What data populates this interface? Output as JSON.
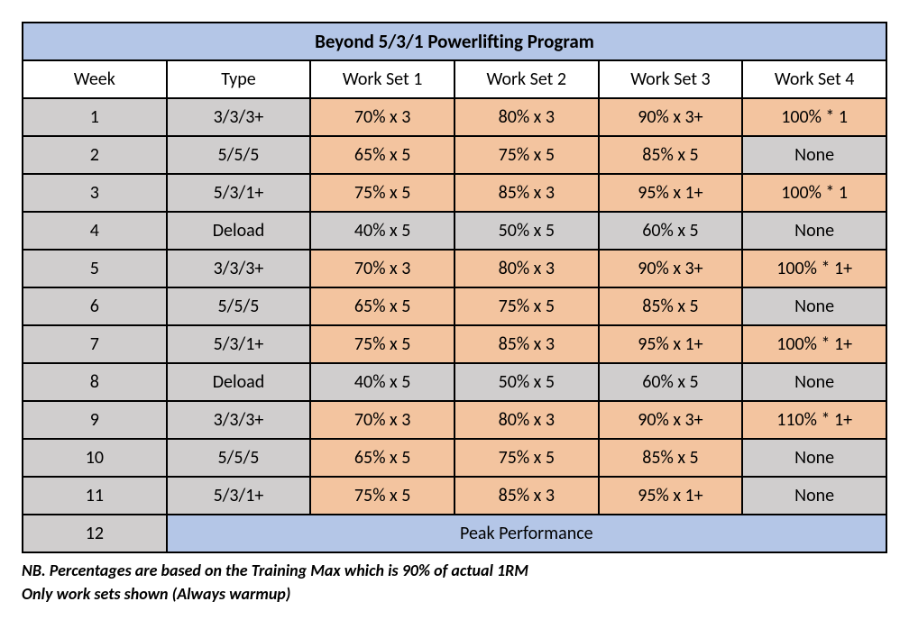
{
  "table": {
    "title": "Beyond 5/3/1 Powerlifting Program",
    "title_bg": "#b4c6e7",
    "columns": [
      "Week",
      "Type",
      "Work Set 1",
      "Work Set 2",
      "Work Set 3",
      "Work Set 4"
    ],
    "cell_colors": {
      "gray": "#d0cece",
      "orange": "#f3c49f",
      "blue": "#b4c6e7"
    },
    "rows": [
      {
        "week": "1",
        "type": "3/3/3+",
        "ws1": "70% x 3",
        "ws2": "80% x 3",
        "ws3": "90% x 3+",
        "ws4": "100% * 1",
        "ws_class": "orange"
      },
      {
        "week": "2",
        "type": "5/5/5",
        "ws1": "65% x 5",
        "ws2": "75% x 5",
        "ws3": "85% x 5",
        "ws4": "None",
        "ws_class": "gray",
        "override": {
          "ws1": "orange",
          "ws2": "orange",
          "ws3": "orange"
        }
      },
      {
        "week": "3",
        "type": "5/3/1+",
        "ws1": "75% x 5",
        "ws2": "85% x 3",
        "ws3": "95% x 1+",
        "ws4": "100% * 1",
        "ws_class": "orange"
      },
      {
        "week": "4",
        "type": "Deload",
        "ws1": "40% x 5",
        "ws2": "50% x 5",
        "ws3": "60% x 5",
        "ws4": "None",
        "ws_class": "gray"
      },
      {
        "week": "5",
        "type": "3/3/3+",
        "ws1": "70% x 3",
        "ws2": "80% x 3",
        "ws3": "90% x 3+",
        "ws4": "100% * 1+",
        "ws_class": "orange"
      },
      {
        "week": "6",
        "type": "5/5/5",
        "ws1": "65% x 5",
        "ws2": "75% x 5",
        "ws3": "85% x 5",
        "ws4": "None",
        "ws_class": "gray",
        "override": {
          "ws1": "orange",
          "ws2": "orange",
          "ws3": "orange"
        }
      },
      {
        "week": "7",
        "type": "5/3/1+",
        "ws1": "75% x 5",
        "ws2": "85% x 3",
        "ws3": "95% x 1+",
        "ws4": "100% * 1+",
        "ws_class": "orange"
      },
      {
        "week": "8",
        "type": "Deload",
        "ws1": "40% x 5",
        "ws2": "50% x 5",
        "ws3": "60% x 5",
        "ws4": "None",
        "ws_class": "gray"
      },
      {
        "week": "9",
        "type": "3/3/3+",
        "ws1": "70% x 3",
        "ws2": "80% x 3",
        "ws3": "90% x 3+",
        "ws4": "110% * 1+",
        "ws_class": "orange"
      },
      {
        "week": "10",
        "type": "5/5/5",
        "ws1": "65% x 5",
        "ws2": "75% x 5",
        "ws3": "85% x 5",
        "ws4": "None",
        "ws_class": "gray",
        "override": {
          "ws1": "orange",
          "ws2": "orange",
          "ws3": "orange"
        }
      },
      {
        "week": "11",
        "type": "5/3/1+",
        "ws1": "75% x 5",
        "ws2": "85% x 3",
        "ws3": "95% x 1+",
        "ws4": "None",
        "ws_class": "gray",
        "override": {
          "ws1": "orange",
          "ws2": "orange",
          "ws3": "orange"
        }
      }
    ],
    "final_row": {
      "week": "12",
      "peak_label": "Peak Performance"
    }
  },
  "notes": [
    "NB. Percentages are based on the Training Max which is 90% of actual 1RM",
    "Only work sets shown (Always warmup)"
  ]
}
